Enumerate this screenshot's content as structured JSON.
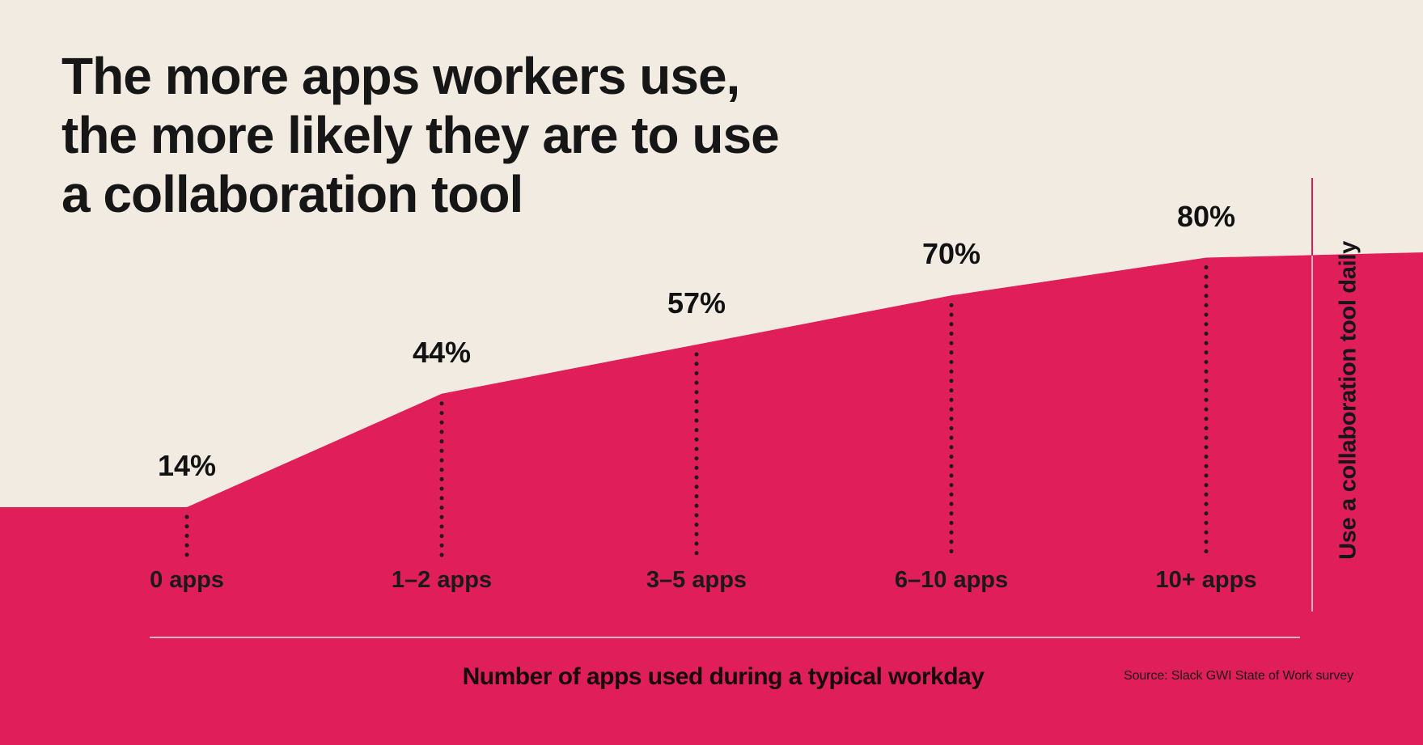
{
  "title_lines": [
    "The more apps workers use,",
    "the more likely they are to use",
    "a collaboration tool"
  ],
  "chart_data": {
    "type": "area",
    "title": "The more apps workers use, the more likely they are to use a collaboration tool",
    "categories": [
      "0 apps",
      "1–2 apps",
      "3–5 apps",
      "6–10 apps",
      "10+ apps"
    ],
    "values": [
      14,
      44,
      57,
      70,
      80
    ],
    "value_labels": [
      "14%",
      "44%",
      "57%",
      "70%",
      "80%"
    ],
    "xlabel": "Number of apps used during a typical workday",
    "ylabel_right": "Use a collaboration tool daily",
    "source": "Source: Slack GWI State of Work survey",
    "ylim": [
      0,
      100
    ],
    "grid": false,
    "legend": "none"
  },
  "colors": {
    "background": "#F1EBE2",
    "area_fill": "#E01E5A",
    "text": "#161616",
    "dotted_marker": "#241A1E",
    "axis_line": "rgba(255,255,255,0.65)",
    "right_marker_line": "#DC1A58"
  }
}
